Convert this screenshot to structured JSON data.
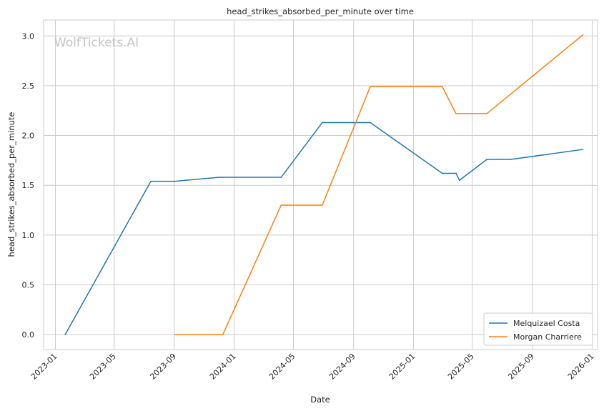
{
  "chart_data": {
    "type": "line",
    "title": "head_strikes_absorbed_per_minute over time",
    "xlabel": "Date",
    "ylabel": "head_strikes_absorbed_per_minute",
    "watermark": "WolfTickets.AI",
    "x_type": "date",
    "xlim": [
      "2022-12-08",
      "2026-01-12"
    ],
    "ylim": [
      -0.15,
      3.16
    ],
    "x_ticks": [
      "2023-01",
      "2023-05",
      "2023-09",
      "2024-01",
      "2024-05",
      "2024-09",
      "2025-01",
      "2025-05",
      "2025-09",
      "2026-01"
    ],
    "y_ticks": [
      "0.0",
      "0.5",
      "1.0",
      "1.5",
      "2.0",
      "2.5",
      "3.0"
    ],
    "grid": true,
    "legend_position": "lower-right",
    "series": [
      {
        "name": "Melquizael Costa",
        "color": "#1f77b4",
        "points": [
          {
            "x": "2023-01-21",
            "y": 0.0
          },
          {
            "x": "2023-07-15",
            "y": 1.54
          },
          {
            "x": "2023-09-02",
            "y": 1.54
          },
          {
            "x": "2023-12-02",
            "y": 1.58
          },
          {
            "x": "2024-04-06",
            "y": 1.58
          },
          {
            "x": "2024-06-29",
            "y": 2.13
          },
          {
            "x": "2024-10-05",
            "y": 2.13
          },
          {
            "x": "2025-03-01",
            "y": 1.62
          },
          {
            "x": "2025-03-29",
            "y": 1.62
          },
          {
            "x": "2025-04-05",
            "y": 1.55
          },
          {
            "x": "2025-05-31",
            "y": 1.76
          },
          {
            "x": "2025-07-19",
            "y": 1.76
          },
          {
            "x": "2025-12-13",
            "y": 1.86
          }
        ]
      },
      {
        "name": "Morgan Charriere",
        "color": "#ff7f0e",
        "points": [
          {
            "x": "2023-09-02",
            "y": 0.0
          },
          {
            "x": "2023-12-09",
            "y": 0.0
          },
          {
            "x": "2024-04-06",
            "y": 1.3
          },
          {
            "x": "2024-06-29",
            "y": 1.3
          },
          {
            "x": "2024-10-05",
            "y": 2.49
          },
          {
            "x": "2025-03-01",
            "y": 2.49
          },
          {
            "x": "2025-03-29",
            "y": 2.22
          },
          {
            "x": "2025-05-31",
            "y": 2.22
          },
          {
            "x": "2025-12-13",
            "y": 3.01
          }
        ]
      }
    ]
  }
}
